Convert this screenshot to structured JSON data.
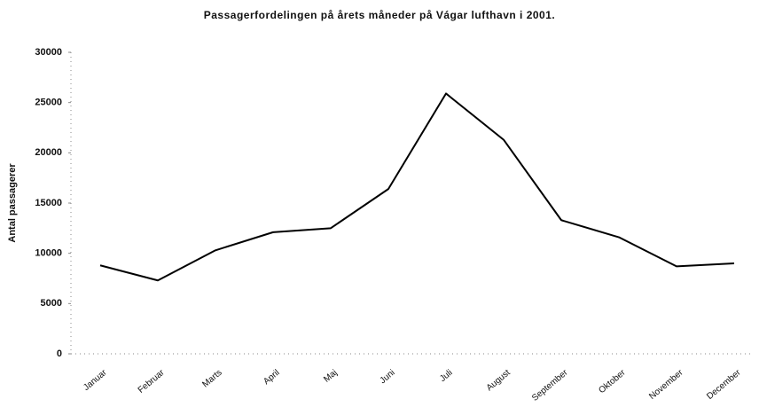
{
  "chart_data": {
    "type": "line",
    "title": "Passagerfordelingen på årets måneder på Vágar lufthavn i 2001.",
    "y_label": "Antal passagerer",
    "categories": [
      "Januar",
      "Februar",
      "Marts",
      "April",
      "Maj",
      "Juni",
      "Juli",
      "August",
      "September",
      "Oktober",
      "November",
      "December"
    ],
    "series": [
      {
        "name": "Antal passagerer",
        "color": "#000000",
        "values": [
          8800,
          7300,
          10300,
          12100,
          12500,
          16400,
          25900,
          21300,
          13300,
          11600,
          8700,
          9000
        ]
      }
    ],
    "ylim": [
      0,
      30000
    ],
    "yticks": [
      0,
      5000,
      10000,
      15000,
      20000,
      25000,
      30000
    ],
    "grid": false
  }
}
